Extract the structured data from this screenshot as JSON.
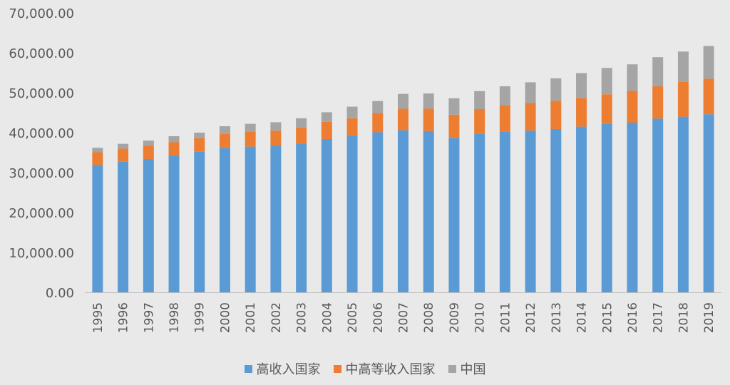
{
  "chart_data": {
    "type": "bar",
    "stacked": true,
    "categories": [
      "1995",
      "1996",
      "1997",
      "1998",
      "1999",
      "2000",
      "2001",
      "2002",
      "2003",
      "2004",
      "2005",
      "2006",
      "2007",
      "2008",
      "2009",
      "2010",
      "2011",
      "2012",
      "2013",
      "2014",
      "2015",
      "2016",
      "2017",
      "2018",
      "2019"
    ],
    "series": [
      {
        "name": "高收入国家",
        "color": "#5b9bd5",
        "values": [
          31900,
          32700,
          33400,
          34300,
          35200,
          36200,
          36500,
          36700,
          37300,
          38400,
          39200,
          40100,
          40600,
          40400,
          38700,
          39700,
          40300,
          40500,
          40900,
          41500,
          42200,
          42500,
          43500,
          44000,
          44600
        ]
      },
      {
        "name": "中高等收入国家",
        "color": "#ed7d31",
        "values": [
          3200,
          3300,
          3300,
          3300,
          3400,
          3500,
          3800,
          3800,
          4000,
          4300,
          4400,
          4800,
          5400,
          5600,
          5800,
          6200,
          6600,
          6900,
          7100,
          7200,
          7400,
          8000,
          8100,
          8700,
          8900
        ]
      },
      {
        "name": "中国",
        "color": "#a5a5a5",
        "values": [
          1100,
          1200,
          1300,
          1500,
          1400,
          1900,
          1900,
          2100,
          2300,
          2400,
          2900,
          3000,
          3700,
          3800,
          4100,
          4500,
          4700,
          5200,
          5600,
          6200,
          6600,
          6600,
          7300,
          7600,
          8200
        ]
      }
    ],
    "ylim": [
      0,
      70000
    ],
    "yticks": [
      "0.00",
      "10,000.00",
      "20,000.00",
      "30,000.00",
      "40,000.00",
      "50,000.00",
      "60,000.00",
      "70,000.00"
    ],
    "title": "",
    "xlabel": "",
    "ylabel": "",
    "grid": false,
    "legend_position": "bottom"
  }
}
